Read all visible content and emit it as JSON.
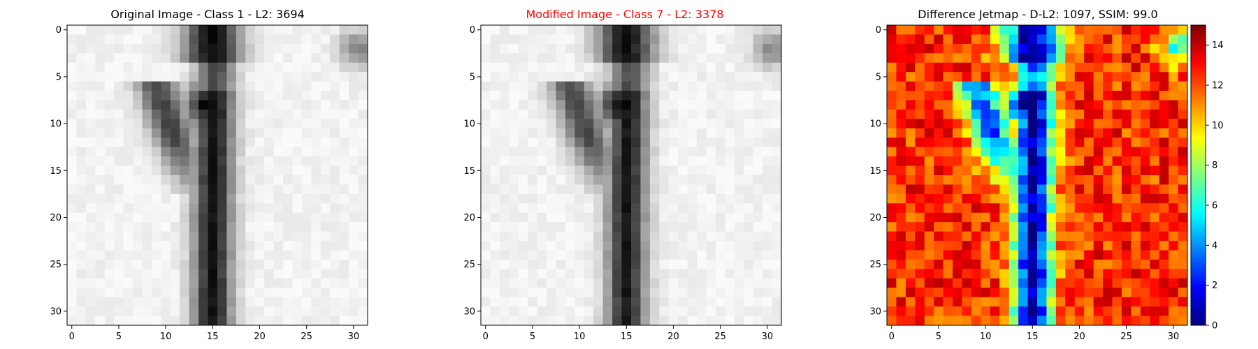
{
  "panels": [
    {
      "title": "Original Image - Class 1 - L2: 3694",
      "title_color": "#000000"
    },
    {
      "title": "Modified Image - Class 7 - L2: 3378",
      "title_color": "#ff0000"
    },
    {
      "title": "Difference Jetmap - D-L2: 1097, SSIM: 99.0",
      "title_color": "#000000"
    }
  ],
  "chart_data": [
    {
      "type": "heatmap",
      "title": "Original Image - Class 1 - L2: 3694",
      "colormap": "gray",
      "grid_size": [
        32,
        32
      ],
      "xlim": [
        -0.5,
        31.5
      ],
      "ylim": [
        31.5,
        -0.5
      ],
      "xticks": [
        0,
        5,
        10,
        15,
        20,
        25,
        30
      ],
      "yticks": [
        0,
        5,
        10,
        15,
        20,
        25,
        30
      ],
      "content": "handwritten digit 1 (dark vertical stroke centered near x=15, slight hook at top-left)"
    },
    {
      "type": "heatmap",
      "title": "Modified Image - Class 7 - L2: 3378",
      "colormap": "gray",
      "grid_size": [
        32,
        32
      ],
      "xlim": [
        -0.5,
        31.5
      ],
      "ylim": [
        31.5,
        -0.5
      ],
      "xticks": [
        0,
        5,
        10,
        15,
        20,
        25,
        30
      ],
      "yticks": [
        0,
        5,
        10,
        15,
        20,
        25,
        30
      ]
    },
    {
      "type": "heatmap",
      "title": "Difference Jetmap - D-L2: 1097, SSIM: 99.0",
      "colormap": "jet",
      "grid_size": [
        32,
        32
      ],
      "xlim": [
        -0.5,
        31.5
      ],
      "ylim": [
        31.5,
        -0.5
      ],
      "xticks": [
        0,
        5,
        10,
        15,
        20,
        25,
        30
      ],
      "yticks": [
        0,
        5,
        10,
        15,
        20,
        25,
        30
      ],
      "colorbar": {
        "min": 0,
        "max": 15,
        "ticks": [
          0,
          2,
          4,
          6,
          8,
          10,
          12,
          14
        ]
      }
    }
  ]
}
